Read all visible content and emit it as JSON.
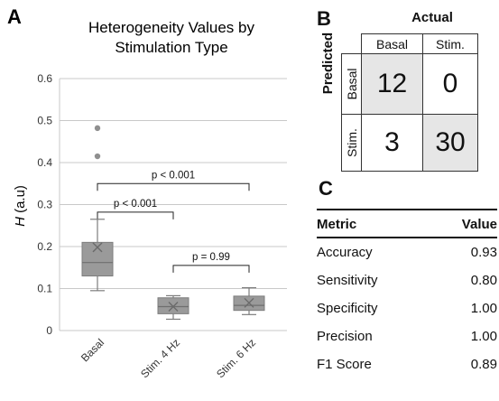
{
  "panel_letters": {
    "a": "A",
    "b": "B",
    "c": "C"
  },
  "chart_data": {
    "type": "box",
    "title": "Heterogeneity Values by Stimulation Type",
    "title_lines": [
      "Heterogeneity Values by",
      "Stimulation Type"
    ],
    "ylabel_italic": "H",
    "ylabel_rest": " (a.u)",
    "ylim": [
      0,
      0.6
    ],
    "yticks": [
      "0",
      "0.1",
      "0.2",
      "0.3",
      "0.4",
      "0.5",
      "0.6"
    ],
    "grid": true,
    "categories": [
      "Basal",
      "Stim. 4 Hz",
      "Stim. 6 Hz"
    ],
    "boxes": [
      {
        "name": "Basal",
        "whisker_low": 0.095,
        "q1": 0.13,
        "median": 0.162,
        "q3": 0.21,
        "whisker_high": 0.265,
        "mean": 0.198,
        "outliers": [
          0.415,
          0.482
        ]
      },
      {
        "name": "Stim. 4 Hz",
        "whisker_low": 0.027,
        "q1": 0.04,
        "median": 0.057,
        "q3": 0.078,
        "whisker_high": 0.083,
        "mean": 0.057,
        "outliers": []
      },
      {
        "name": "Stim. 6 Hz",
        "whisker_low": 0.038,
        "q1": 0.048,
        "median": 0.06,
        "q3": 0.082,
        "whisker_high": 0.102,
        "mean": 0.066,
        "outliers": []
      }
    ],
    "annotations": [
      {
        "text": "p < 0.001",
        "from": "Basal",
        "to": "Stim. 6 Hz",
        "y": 0.35
      },
      {
        "text": "p < 0.001",
        "from": "Basal",
        "to": "Stim. 4 Hz",
        "y": 0.282
      },
      {
        "text": "p = 0.99",
        "from": "Stim. 4 Hz",
        "to": "Stim. 6 Hz",
        "y": 0.155
      }
    ],
    "colors": {
      "box_fill": "#9a9a9a",
      "box_edge": "#7d7d7d",
      "outlier": "#8f8f8f",
      "grid": "#c8c8c8"
    }
  },
  "confusion_matrix": {
    "actual_label": "Actual",
    "predicted_label": "Predicted",
    "col_headers": [
      "Basal",
      "Stim."
    ],
    "row_headers": [
      "Basal",
      "Stim."
    ],
    "values": [
      [
        "12",
        "0"
      ],
      [
        "3",
        "30"
      ]
    ]
  },
  "metrics": {
    "headers": [
      "Metric",
      "Value"
    ],
    "rows": [
      [
        "Accuracy",
        "0.93"
      ],
      [
        "Sensitivity",
        "0.80"
      ],
      [
        "Specificity",
        "1.00"
      ],
      [
        "Precision",
        "1.00"
      ],
      [
        "F1 Score",
        "0.89"
      ]
    ]
  }
}
